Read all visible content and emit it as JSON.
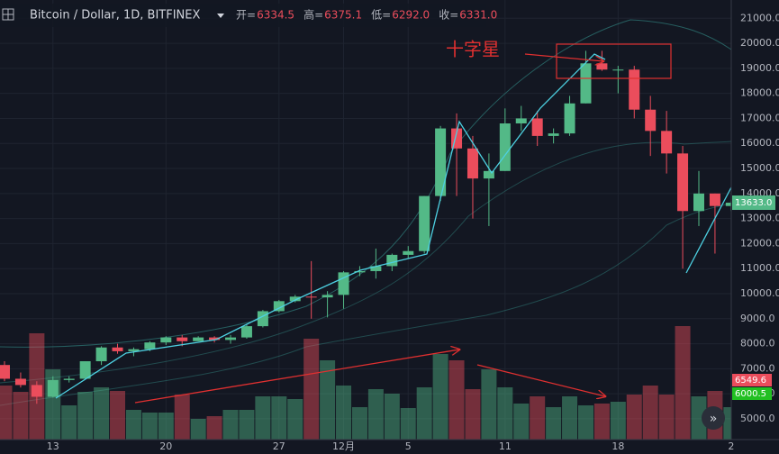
{
  "chart_data": {
    "type": "candlestick",
    "title": "Bitcoin / Dollar, 1D, BITFINEX",
    "legend": [
      {
        "label": "开=",
        "value": "6334.5"
      },
      {
        "label": "高=",
        "value": "6375.1"
      },
      {
        "label": "低=",
        "value": "6292.0"
      },
      {
        "label": "收=",
        "value": "6331.0"
      }
    ],
    "categories": [
      null,
      null,
      null,
      "13",
      null,
      null,
      null,
      null,
      null,
      null,
      "20",
      null,
      null,
      null,
      null,
      null,
      null,
      "27",
      null,
      null,
      null,
      "12月",
      null,
      null,
      null,
      "5",
      null,
      null,
      null,
      null,
      null,
      "11",
      null,
      null,
      null,
      null,
      null,
      null,
      "18",
      null,
      null,
      null,
      null,
      null,
      null,
      "2"
    ],
    "open": [
      7150,
      6600,
      6350,
      5880,
      6550,
      6600,
      7300,
      7850,
      7700,
      7780,
      8050,
      8250,
      8100,
      8250,
      8150,
      8250,
      8700,
      9300,
      9700,
      9880,
      9850,
      9950,
      10850,
      10900,
      11100,
      11550,
      11700,
      13900,
      16600,
      15800,
      14600,
      14900,
      16800,
      17000,
      16300,
      16400,
      17600,
      19200,
      18950,
      18950,
      17350,
      16500,
      15600,
      13300,
      14000,
      13500
    ],
    "high": [
      7300,
      6850,
      6500,
      6700,
      6700,
      7300,
      7900,
      8000,
      7850,
      8100,
      8300,
      8350,
      8300,
      8300,
      8350,
      8750,
      9350,
      9750,
      9950,
      11300,
      10100,
      10900,
      11100,
      11800,
      11600,
      11900,
      13900,
      16700,
      17200,
      16300,
      15600,
      17400,
      17500,
      17300,
      16600,
      17900,
      19700,
      19700,
      19100,
      19100,
      17900,
      17300,
      15900,
      14900,
      14000,
      13700
    ],
    "low": [
      6500,
      6250,
      5600,
      5850,
      6450,
      6600,
      7150,
      7600,
      7500,
      7700,
      7950,
      7900,
      8100,
      8050,
      8000,
      8200,
      8650,
      9250,
      9650,
      9000,
      9050,
      9400,
      10700,
      10600,
      10900,
      11400,
      11600,
      13700,
      13900,
      13000,
      12700,
      14900,
      16500,
      15900,
      16000,
      16300,
      17600,
      18900,
      18000,
      17000,
      15500,
      14800,
      11000,
      12700,
      11600,
      13300
    ],
    "close": [
      6600,
      6350,
      5880,
      6550,
      6600,
      7300,
      7850,
      7700,
      7780,
      8050,
      8250,
      8100,
      8250,
      8150,
      8250,
      8700,
      9300,
      9700,
      9880,
      9850,
      9950,
      10850,
      10900,
      11100,
      11550,
      11700,
      13900,
      16600,
      15800,
      14600,
      14900,
      16800,
      17000,
      16300,
      16400,
      17600,
      19200,
      18950,
      18950,
      17350,
      16500,
      15600,
      13300,
      14000,
      13500,
      13633
    ],
    "volume": [
      60,
      53,
      118,
      78,
      38,
      53,
      58,
      54,
      33,
      30,
      30,
      50,
      23,
      26,
      33,
      33,
      48,
      48,
      45,
      112,
      88,
      60,
      36,
      56,
      51,
      35,
      58,
      95,
      88,
      56,
      78,
      58,
      40,
      48,
      36,
      48,
      38,
      40,
      42,
      50,
      60,
      50,
      126,
      48,
      54,
      36
    ],
    "up_color": "#53b987",
    "down_color": "#eb4d5c",
    "ylim": [
      4170,
      21730
    ],
    "yticks": [
      {
        "value": 5000,
        "label": "5000.0"
      },
      {
        "value": 6000,
        "label": "6000.0"
      },
      {
        "value": 7000,
        "label": "7000.0"
      },
      {
        "value": 8000,
        "label": "8000.0"
      },
      {
        "value": 9000,
        "label": "9000.0"
      },
      {
        "value": 10000,
        "label": "10000.0"
      },
      {
        "value": 11000,
        "label": "11000.0"
      },
      {
        "value": 12000,
        "label": "12000.0"
      },
      {
        "value": 13000,
        "label": "13000.0"
      },
      {
        "value": 14000,
        "label": "14000.0"
      },
      {
        "value": 15000,
        "label": "15000.0"
      },
      {
        "value": 16000,
        "label": "16000.0"
      },
      {
        "value": 17000,
        "label": "17000.0"
      },
      {
        "value": 18000,
        "label": "18000.0"
      },
      {
        "value": 19000,
        "label": "19000.0"
      },
      {
        "value": 20000,
        "label": "20000.0"
      },
      {
        "value": 21000,
        "label": "21000.0"
      }
    ],
    "last_price_label": "13633.0",
    "volume_labels": [
      "6549.6",
      "6000.5"
    ],
    "annotation": "十字星",
    "grid": true
  }
}
